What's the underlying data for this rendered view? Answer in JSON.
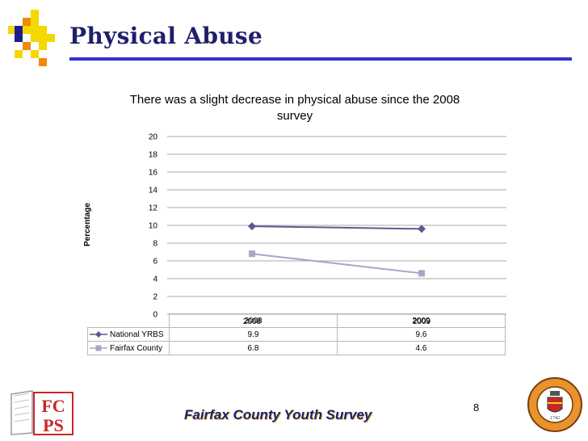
{
  "slide": {
    "title": "Physical Abuse",
    "footer": "Fairfax County Youth Survey",
    "page_number": "8",
    "accent_rule_color": "#3333cc",
    "title_color": "#1f1f6e"
  },
  "logos": {
    "fcps_text_1": "FC",
    "fcps_text_2": "PS",
    "seal_text": "1742"
  },
  "chart_data": {
    "type": "line",
    "title": "There was a slight decrease in physical abuse since the 2008 survey",
    "xlabel": "",
    "ylabel": "Percentage",
    "categories": [
      "2008",
      "2009"
    ],
    "ylim": [
      0,
      20
    ],
    "yticks": [
      0,
      2,
      4,
      6,
      8,
      10,
      12,
      14,
      16,
      18,
      20
    ],
    "grid": true,
    "legend": "data-table",
    "series": [
      {
        "name": "National YRBS",
        "values": [
          9.9,
          9.6
        ],
        "labels": [
          "9.9",
          "9.6"
        ],
        "color": "#5b5b92",
        "marker": "diamond"
      },
      {
        "name": "Fairfax County",
        "values": [
          6.8,
          4.6
        ],
        "labels": [
          "6.8",
          "4.6"
        ],
        "color": "#a6a6c8",
        "marker": "square"
      }
    ]
  }
}
